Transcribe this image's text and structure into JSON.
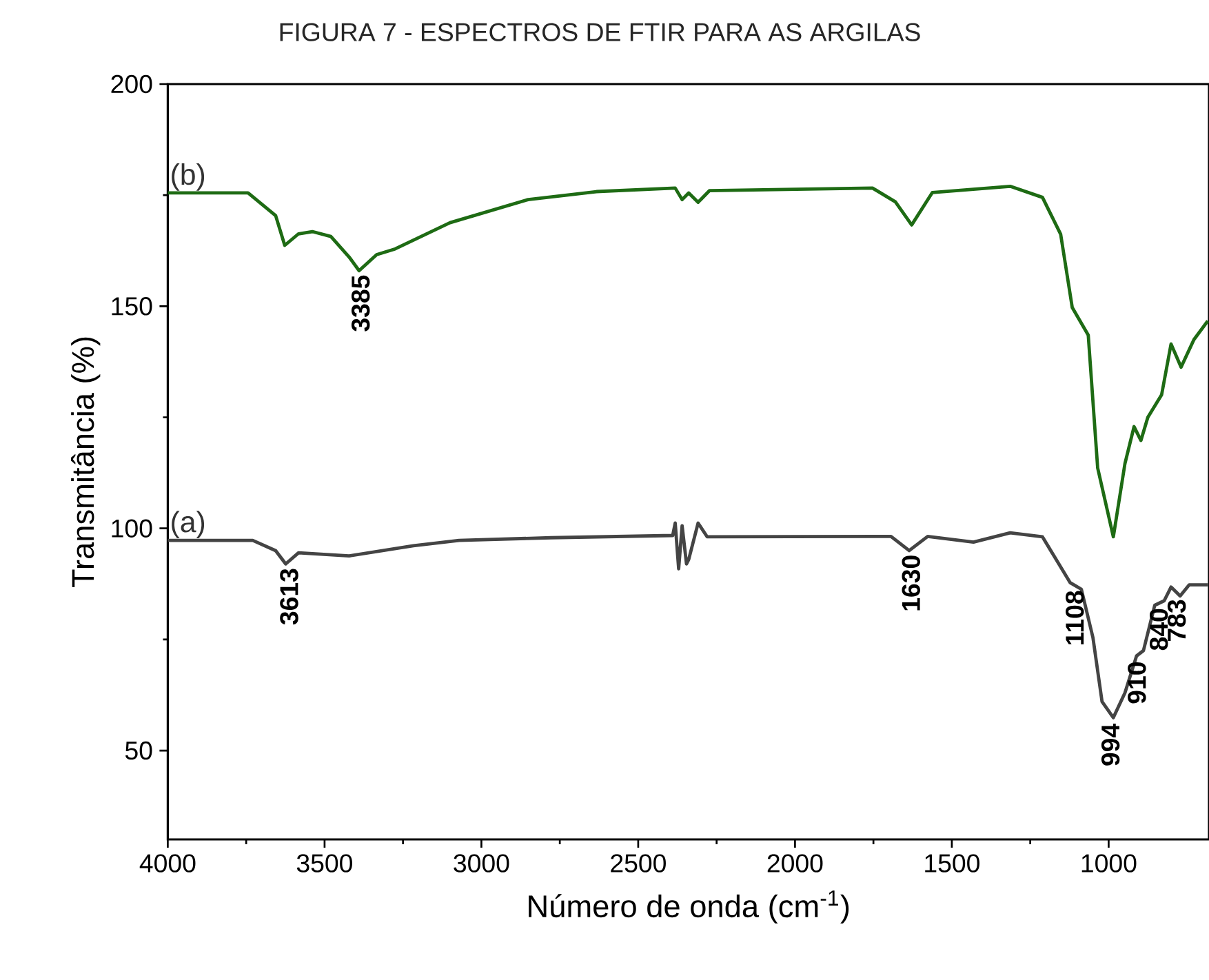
{
  "chart_data": {
    "type": "line",
    "title": "FIGURA 7 - ESPECTROS DE FTIR PARA AS ARGILAS",
    "xlabel": "Número de onda (cm$^{-1}$)",
    "ylabel": "Transmitância (%)",
    "xlim": [
      4000,
      680
    ],
    "ylim": [
      30,
      200
    ],
    "xticks": [
      4000,
      3500,
      3000,
      2500,
      2000,
      1500,
      1000
    ],
    "yticks": [
      50,
      100,
      150,
      200
    ],
    "grid": false,
    "legend": false,
    "marker": "none",
    "line_style": "solid",
    "series": [
      {
        "name": "(a)",
        "color": "#444444",
        "x": [
          4000,
          3729,
          3656,
          3624,
          3583,
          3422,
          3217,
          3071,
          2778,
          2390,
          2382,
          2371,
          2360,
          2346,
          2339,
          2309,
          2280,
          1694,
          1636,
          1577,
          1431,
          1314,
          1211,
          1123,
          1087,
          1050,
          1021,
          985,
          948,
          911,
          889,
          853,
          823,
          801,
          772,
          743,
          684
        ],
        "values": [
          97.3,
          97.3,
          95,
          92,
          94.5,
          93.8,
          96.1,
          97.3,
          97.9,
          98.4,
          101.2,
          90.9,
          100.6,
          92,
          93,
          101.2,
          98.1,
          98.2,
          95,
          98.2,
          96.9,
          99,
          98.1,
          87.8,
          86.3,
          75.4,
          61,
          57.4,
          63,
          71.3,
          72.5,
          82.7,
          83.7,
          86.8,
          84.8,
          87.3,
          87.3
        ]
      },
      {
        "name": "(b)",
        "color": "#1e6b14",
        "x": [
          4000,
          3744,
          3656,
          3627,
          3583,
          3539,
          3480,
          3422,
          3390,
          3334,
          3275,
          3100,
          2851,
          2633,
          2382,
          2360,
          2339,
          2309,
          2273,
          1753,
          1680,
          1628,
          1562,
          1314,
          1211,
          1153,
          1116,
          1065,
          1035,
          985,
          948,
          919,
          897,
          875,
          831,
          801,
          769,
          728,
          684
        ],
        "values": [
          175.5,
          175.5,
          170.4,
          163.7,
          166.3,
          166.8,
          165.7,
          161.1,
          158,
          161.6,
          162.9,
          168.8,
          174,
          175.8,
          176.6,
          174,
          175.5,
          173.4,
          176,
          176.6,
          173.5,
          168.3,
          175.6,
          177,
          174.5,
          166.2,
          149.7,
          143.5,
          113.6,
          98.1,
          114.6,
          122.9,
          119.8,
          125,
          130.1,
          141.5,
          136.3,
          142.5,
          146.7
        ]
      }
    ],
    "annotations": [
      {
        "text": "3613",
        "x": 3613,
        "y": 92
      },
      {
        "text": "3385",
        "x": 3385,
        "y": 158
      },
      {
        "text": "1630",
        "x": 1630,
        "y": 95
      },
      {
        "text": "1108",
        "x": 1108,
        "y": 87
      },
      {
        "text": "994",
        "x": 994,
        "y": 57
      },
      {
        "text": "910",
        "x": 910,
        "y": 71
      },
      {
        "text": "840",
        "x": 840,
        "y": 83
      },
      {
        "text": "783",
        "x": 783,
        "y": 85
      }
    ]
  }
}
